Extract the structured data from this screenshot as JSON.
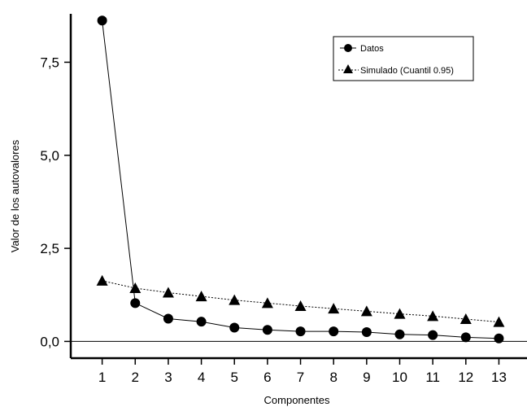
{
  "chart_data": {
    "type": "line",
    "title": "",
    "xlabel": "Componentes",
    "ylabel": "Valor de los autovalores",
    "x": [
      1,
      2,
      3,
      4,
      5,
      6,
      7,
      8,
      9,
      10,
      11,
      12,
      13
    ],
    "x_tick_labels": [
      "1",
      "2",
      "3",
      "4",
      "5",
      "6",
      "7",
      "8",
      "9",
      "10",
      "11",
      "12",
      "13"
    ],
    "y_ticks": [
      0,
      2.5,
      5,
      7.5
    ],
    "y_tick_labels": [
      "0,0",
      "2,5",
      "5,0",
      "7,5"
    ],
    "ylim": [
      -0.45,
      8.8
    ],
    "xlim": [
      0.05,
      13.85
    ],
    "reference_line_y": 0,
    "legend_position": "top-right",
    "series": [
      {
        "name": "Datos",
        "marker": "circle",
        "line_style": "solid",
        "values": [
          8.62,
          1.03,
          0.61,
          0.53,
          0.37,
          0.31,
          0.27,
          0.27,
          0.25,
          0.19,
          0.17,
          0.11,
          0.08
        ]
      },
      {
        "name": "Simulado (Cuantil 0.95)",
        "marker": "triangle",
        "line_style": "dotted",
        "values": [
          1.63,
          1.43,
          1.31,
          1.21,
          1.11,
          1.03,
          0.95,
          0.88,
          0.81,
          0.74,
          0.68,
          0.6,
          0.52
        ]
      }
    ]
  }
}
